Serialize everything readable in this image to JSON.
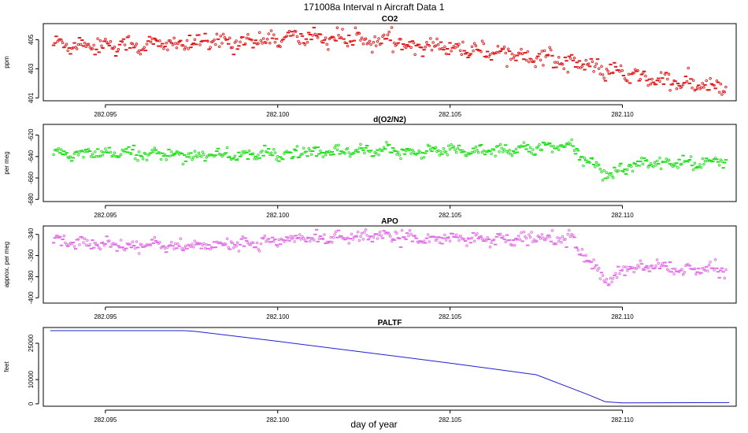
{
  "figure": {
    "title": "171008a   Interval n Aircraft Data 1",
    "xlabel": "day of year"
  },
  "chart_data": [
    {
      "type": "scatter",
      "title": "CO2",
      "ylabel": "ppm",
      "color": "#e31a1c",
      "xlim": [
        282.0932,
        282.1133
      ],
      "ylim": [
        400.8,
        406.1
      ],
      "x_ticks": [
        "282.095",
        "282.100",
        "282.105",
        "282.110"
      ],
      "y_ticks": [
        "401",
        "403",
        "405"
      ],
      "trend": [
        [
          282.0935,
          404.7
        ],
        [
          282.096,
          404.6
        ],
        [
          282.099,
          404.9
        ],
        [
          282.101,
          405.2
        ],
        [
          282.103,
          404.9
        ],
        [
          282.105,
          404.5
        ],
        [
          282.107,
          404.0
        ],
        [
          282.1085,
          403.5
        ],
        [
          282.1095,
          402.9
        ],
        [
          282.1105,
          402.4
        ],
        [
          282.112,
          401.9
        ],
        [
          282.113,
          401.7
        ]
      ],
      "spread": 0.5,
      "n_points": 520
    },
    {
      "type": "scatter",
      "title": "d(O2/N2)",
      "ylabel": "per meg",
      "color": "#22e01c",
      "xlim": [
        282.0932,
        282.1133
      ],
      "ylim": [
        -682,
        -610
      ],
      "x_ticks": [
        "282.095",
        "282.100",
        "282.105",
        "282.110"
      ],
      "y_ticks": [
        "-680",
        "-660",
        "-640",
        "-620"
      ],
      "trend": [
        [
          282.0935,
          -638
        ],
        [
          282.096,
          -637
        ],
        [
          282.098,
          -639
        ],
        [
          282.1,
          -638
        ],
        [
          282.102,
          -636
        ],
        [
          282.104,
          -635
        ],
        [
          282.106,
          -634
        ],
        [
          282.108,
          -632
        ],
        [
          282.1085,
          -630
        ],
        [
          282.1088,
          -640
        ],
        [
          282.1092,
          -648
        ],
        [
          282.1096,
          -658
        ],
        [
          282.11,
          -650
        ],
        [
          282.111,
          -645
        ],
        [
          282.112,
          -647
        ],
        [
          282.113,
          -644
        ]
      ],
      "spread": 5,
      "n_points": 520
    },
    {
      "type": "scatter",
      "title": "APO",
      "ylabel": "approx. per meg",
      "color": "#e36fe8",
      "xlim": [
        282.0932,
        282.1133
      ],
      "ylim": [
        -405,
        -332
      ],
      "x_ticks": [
        "282.095",
        "282.100",
        "282.105",
        "282.110"
      ],
      "y_ticks": [
        "-400",
        "-380",
        "-360",
        "-340"
      ],
      "trend": [
        [
          282.0935,
          -347
        ],
        [
          282.096,
          -350
        ],
        [
          282.098,
          -351
        ],
        [
          282.1,
          -346
        ],
        [
          282.102,
          -342
        ],
        [
          282.104,
          -343
        ],
        [
          282.106,
          -344
        ],
        [
          282.108,
          -344
        ],
        [
          282.1085,
          -342
        ],
        [
          282.1088,
          -358
        ],
        [
          282.1092,
          -372
        ],
        [
          282.1096,
          -385
        ],
        [
          282.11,
          -374
        ],
        [
          282.111,
          -370
        ],
        [
          282.112,
          -374
        ],
        [
          282.113,
          -373
        ]
      ],
      "spread": 5,
      "n_points": 520
    },
    {
      "type": "line",
      "title": "PALTF",
      "ylabel": "feet",
      "color": "#1f1fd6",
      "xlim": [
        282.0932,
        282.1133
      ],
      "ylim": [
        -1000,
        31500
      ],
      "x_ticks": [
        "282.095",
        "282.100",
        "282.105",
        "282.110"
      ],
      "y_ticks": [
        "0",
        "10000",
        "25000"
      ],
      "x": [
        282.0934,
        282.0973,
        282.0976,
        282.1,
        282.1025,
        282.105,
        282.1075,
        282.109,
        282.1095,
        282.11,
        282.112,
        282.1131
      ],
      "y": [
        30200,
        30200,
        29900,
        25800,
        21300,
        16800,
        12000,
        3800,
        900,
        400,
        450,
        500
      ]
    }
  ]
}
